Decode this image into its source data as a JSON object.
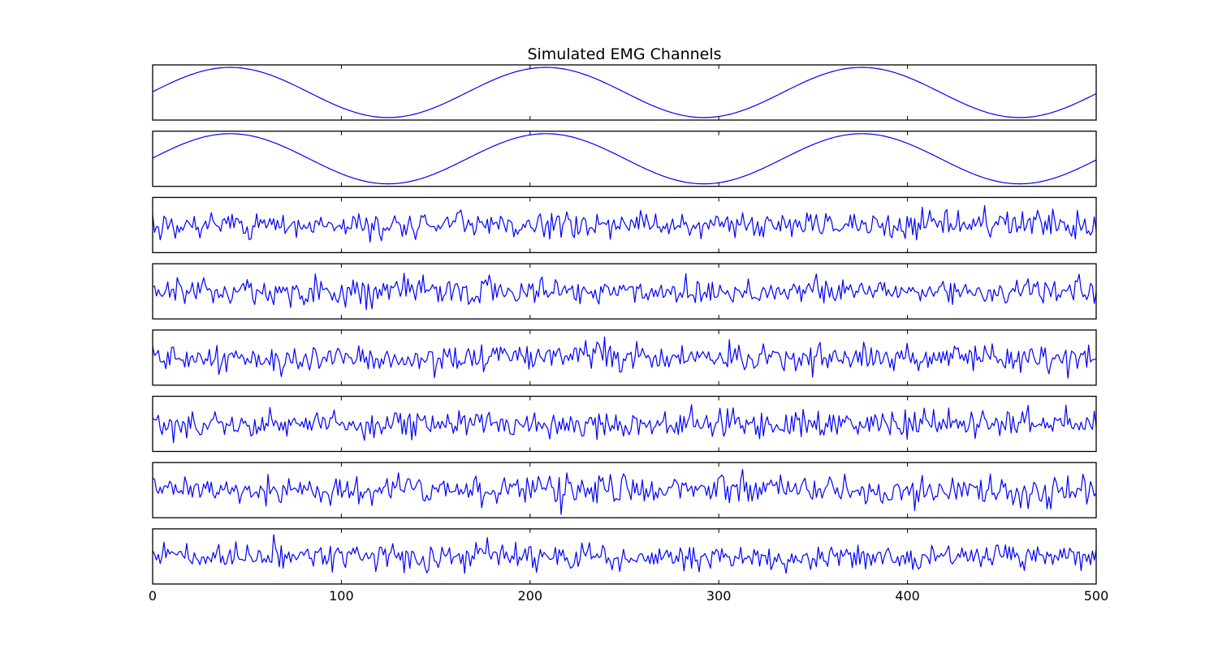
{
  "chart_data": {
    "type": "line",
    "title": "Simulated EMG Channels",
    "xlabel": "",
    "ylabel": "",
    "xlim": [
      0,
      500
    ],
    "x_ticks": [
      0,
      100,
      200,
      300,
      400,
      500
    ],
    "n_points": 500,
    "grid": false,
    "legend": "none",
    "y_ticks_visible": false,
    "line_color": "#0000ff",
    "channels": [
      {
        "kind": "sine",
        "period": 167,
        "peak_x": 41,
        "amplitude": 1.0,
        "ylim": [
          -1.1,
          1.1
        ]
      },
      {
        "kind": "sine",
        "period": 167,
        "peak_x": 41,
        "amplitude": 1.0,
        "ylim": [
          -1.1,
          1.1
        ]
      },
      {
        "kind": "noise",
        "std": 1.0,
        "seed": 3,
        "ylim": [
          -4,
          4
        ]
      },
      {
        "kind": "noise",
        "std": 1.0,
        "seed": 4,
        "ylim": [
          -4,
          4
        ]
      },
      {
        "kind": "noise",
        "std": 1.0,
        "seed": 5,
        "ylim": [
          -4,
          4
        ]
      },
      {
        "kind": "noise",
        "std": 1.0,
        "seed": 6,
        "ylim": [
          -4,
          4
        ]
      },
      {
        "kind": "noise",
        "std": 1.0,
        "seed": 7,
        "ylim": [
          -4,
          4
        ]
      },
      {
        "kind": "noise",
        "std": 1.0,
        "seed": 8,
        "ylim": [
          -4,
          4
        ]
      }
    ]
  }
}
